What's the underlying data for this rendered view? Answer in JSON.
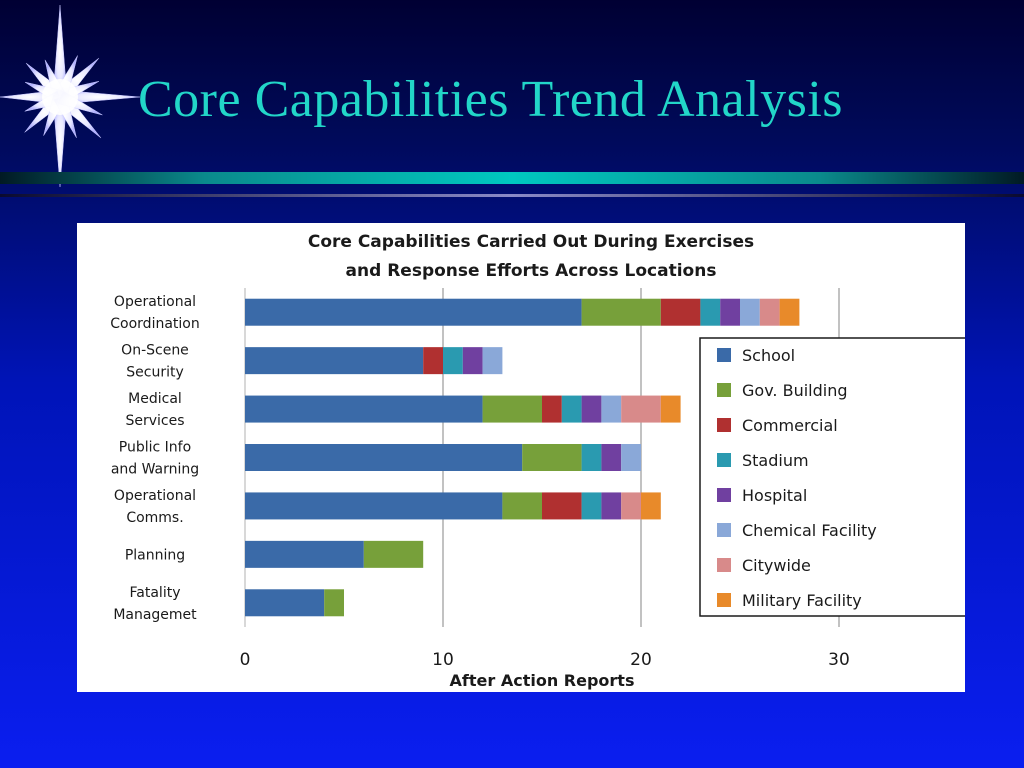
{
  "slide": {
    "title": "Core Capabilities Trend Analysis"
  },
  "chart_data": {
    "type": "bar",
    "orientation": "horizontal",
    "stacked": true,
    "title": "Core Capabilities Carried Out During Exercises and Response Efforts Across Locations",
    "title_lines": [
      "Core Capabilities Carried Out During Exercises",
      "and Response Efforts Across Locations"
    ],
    "xlabel": "After Action Reports",
    "ylabel": "",
    "xlim": [
      0,
      30
    ],
    "xticks": [
      0,
      10,
      20,
      30
    ],
    "grid": true,
    "legend_position": "right",
    "categories": [
      [
        "Operational",
        "Coordination"
      ],
      [
        "On-Scene",
        "Security"
      ],
      [
        "Medical",
        "Services"
      ],
      [
        "Public Info",
        "and Warning"
      ],
      [
        "Operational",
        "Comms."
      ],
      [
        "Planning"
      ],
      [
        "Fatality",
        "Managemet"
      ]
    ],
    "series": [
      {
        "name": "School",
        "color": "#3a6aa8",
        "values": [
          17,
          9,
          12,
          14,
          13,
          6,
          4
        ]
      },
      {
        "name": "Gov. Building",
        "color": "#77a03a",
        "values": [
          4,
          0,
          3,
          3,
          2,
          3,
          1
        ]
      },
      {
        "name": "Commercial",
        "color": "#b03030",
        "values": [
          2,
          1,
          1,
          0,
          2,
          0,
          0
        ]
      },
      {
        "name": "Stadium",
        "color": "#2a9ab0",
        "values": [
          1,
          1,
          1,
          1,
          1,
          0,
          0
        ]
      },
      {
        "name": "Hospital",
        "color": "#7040a0",
        "values": [
          1,
          1,
          1,
          1,
          1,
          0,
          0
        ]
      },
      {
        "name": "Chemical Facility",
        "color": "#8aa8d8",
        "values": [
          1,
          1,
          1,
          1,
          0,
          0,
          0
        ]
      },
      {
        "name": "Citywide",
        "color": "#d88a8a",
        "values": [
          1,
          0,
          2,
          0,
          1,
          0,
          0
        ]
      },
      {
        "name": "Military Facility",
        "color": "#e88a2a",
        "values": [
          1,
          0,
          1,
          0,
          1,
          0,
          0
        ]
      }
    ]
  }
}
